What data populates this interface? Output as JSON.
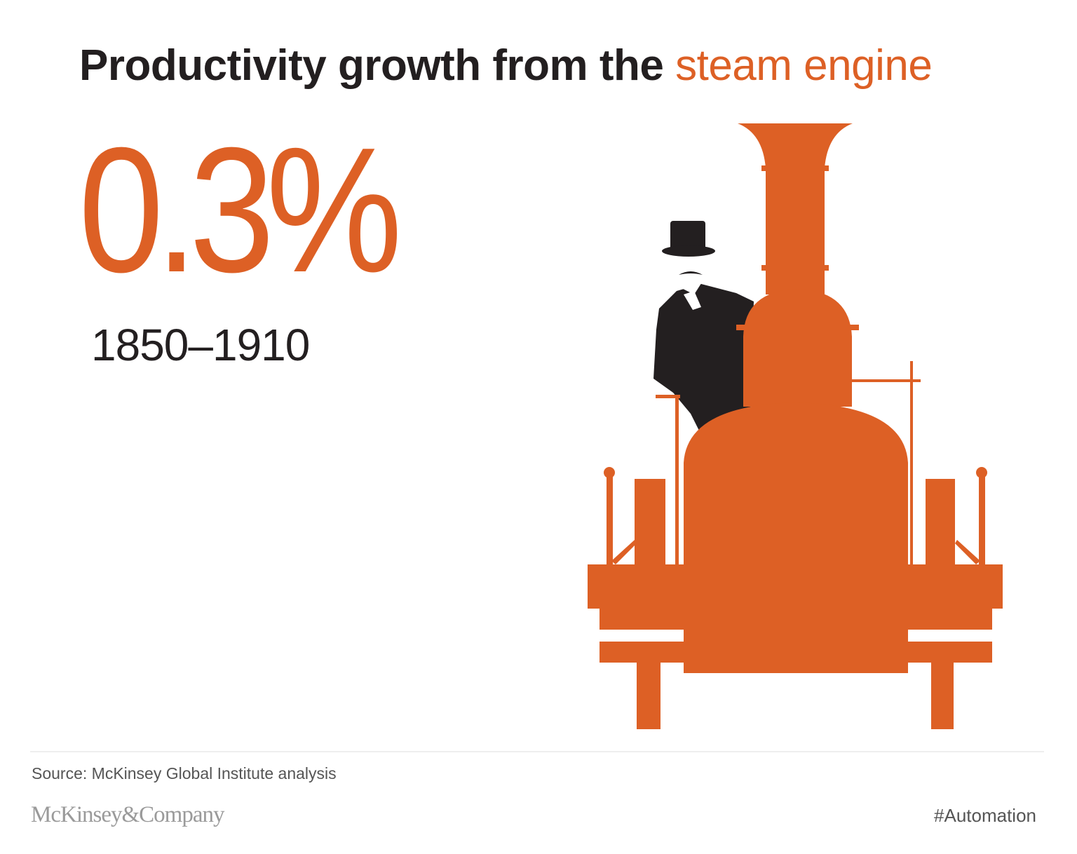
{
  "title": {
    "prefix": "Productivity growth from the ",
    "highlight": "steam engine"
  },
  "stat": {
    "value": "0.3%",
    "period": "1850–1910"
  },
  "illustration": {
    "icon": "steam-locomotive-with-gentleman-icon"
  },
  "footer": {
    "source": "Source: McKinsey Global Institute analysis",
    "logo": "McKinsey&Company",
    "hashtag": "#Automation"
  },
  "colors": {
    "accent": "#dd6025",
    "text": "#231f20",
    "muted": "#555555"
  }
}
